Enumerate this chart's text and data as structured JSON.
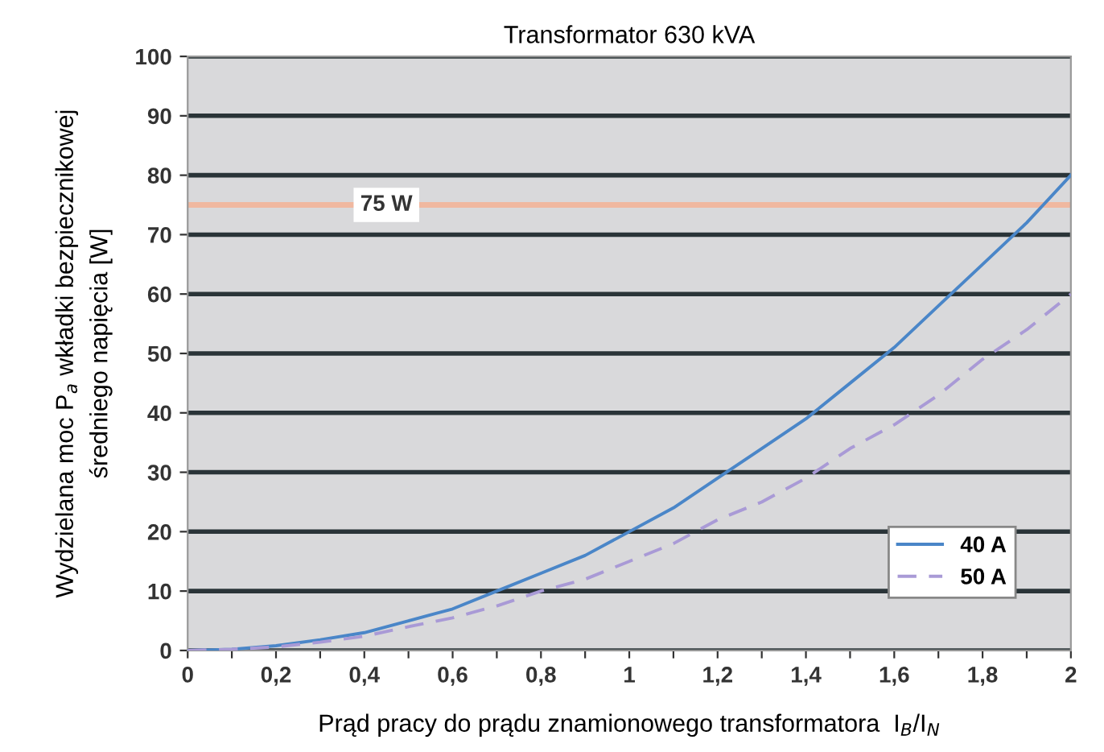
{
  "chart_data": {
    "type": "line",
    "title": "Transformator 630 kVA",
    "xlabel": "Prąd pracy do prądu znamionowego transformatora  I$_{B}$/I$_{N}$",
    "ylabel": "Wydzielana moc P$_{a}$ wkładki bezpiecznikowej\nśredniego napięcia [W]",
    "x": [
      0,
      0.1,
      0.2,
      0.3,
      0.4,
      0.5,
      0.6,
      0.7,
      0.8,
      0.9,
      1,
      1.1,
      1.2,
      1.3,
      1.4,
      1.5,
      1.6,
      1.7,
      1.8,
      1.9,
      2
    ],
    "series": [
      {
        "name": "40 A",
        "color": "#4a86c8",
        "line_style": "solid",
        "values": [
          0,
          0.2,
          0.8,
          1.8,
          3,
          5,
          7,
          10,
          13,
          16,
          20,
          24,
          29,
          34,
          39,
          45,
          51,
          58,
          65,
          72,
          80
        ]
      },
      {
        "name": "50 A",
        "color": "#a99ad6",
        "line_style": "dashed",
        "values": [
          0,
          0.2,
          0.6,
          1.4,
          2.4,
          4,
          5.5,
          7.5,
          10,
          12,
          15,
          18,
          22,
          25,
          29,
          34,
          38,
          43,
          49,
          54,
          60
        ]
      }
    ],
    "xlim": [
      0,
      2
    ],
    "ylim": [
      0,
      100
    ],
    "xticks": [
      0,
      {
        "value": 0.1,
        "label": null
      },
      {
        "value": 0.2,
        "label": "0,2"
      },
      {
        "value": 0.3,
        "label": null
      },
      {
        "value": 0.4,
        "label": "0,4"
      },
      {
        "value": 0.5,
        "label": null
      },
      {
        "value": 0.6,
        "label": "0,6"
      },
      {
        "value": 0.7,
        "label": null
      },
      {
        "value": 0.8,
        "label": "0,8"
      },
      {
        "value": 0.9,
        "label": null
      },
      1,
      {
        "value": 1.1,
        "label": null
      },
      {
        "value": 1.2,
        "label": "1,2"
      },
      {
        "value": 1.3,
        "label": null
      },
      {
        "value": 1.4,
        "label": "1,4"
      },
      {
        "value": 1.5,
        "label": null
      },
      {
        "value": 1.6,
        "label": "1,6"
      },
      {
        "value": 1.7,
        "label": null
      },
      {
        "value": 1.8,
        "label": "1,8"
      },
      {
        "value": 1.9,
        "label": null
      },
      2
    ],
    "yticks": [
      0,
      10,
      20,
      30,
      40,
      50,
      60,
      70,
      80,
      90,
      100
    ],
    "ref_lines": [
      {
        "axis": "y",
        "value": 75,
        "label": "75 W",
        "color": "#f0b8a0",
        "line_style": "solid"
      }
    ],
    "grid": "y",
    "legend": "bottom right",
    "marker": "none"
  }
}
